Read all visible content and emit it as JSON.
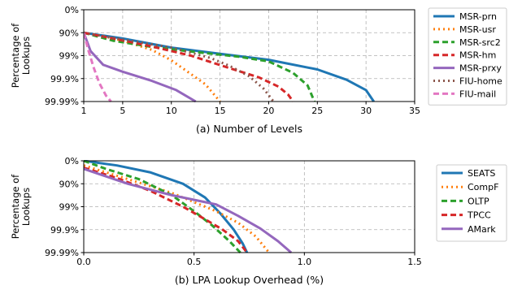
{
  "chart_data": [
    {
      "type": "line",
      "caption": "(a) Number of Levels",
      "ylabel": "Percentage of Lookups",
      "x_ticks": [
        "1",
        "5",
        "10",
        "15",
        "20",
        "25",
        "30",
        "35"
      ],
      "y_ticks": [
        "0%",
        "90%",
        "99%",
        "99.9%",
        "99.99%"
      ],
      "xlim": [
        1,
        35
      ],
      "ylim_nines": [
        0,
        4
      ],
      "y_scale": "tail-nines (0% at top, 99.99% at bottom)",
      "grid": true,
      "legend_position": "right",
      "series": [
        {
          "name": "MSR-prn",
          "color": "#1f77b4",
          "dash": "solid",
          "points": [
            [
              1,
              1.0
            ],
            [
              5,
              1.25
            ],
            [
              10,
              1.65
            ],
            [
              15,
              1.92
            ],
            [
              20,
              2.18
            ],
            [
              25,
              2.6
            ],
            [
              28,
              3.05
            ],
            [
              30,
              3.5
            ],
            [
              30.8,
              4.0
            ]
          ]
        },
        {
          "name": "MSR-usr",
          "color": "#ff7f0e",
          "dash": "dotted",
          "points": [
            [
              1,
              1.0
            ],
            [
              3,
              1.15
            ],
            [
              5,
              1.35
            ],
            [
              8,
              1.75
            ],
            [
              10,
              2.2
            ],
            [
              12,
              2.8
            ],
            [
              13.5,
              3.25
            ],
            [
              15,
              4.0
            ]
          ]
        },
        {
          "name": "MSR-src2",
          "color": "#2ca02c",
          "dash": "dashed",
          "points": [
            [
              1,
              1.0
            ],
            [
              4,
              1.35
            ],
            [
              8,
              1.62
            ],
            [
              12,
              1.82
            ],
            [
              17,
              2.05
            ],
            [
              20,
              2.25
            ],
            [
              22.5,
              2.75
            ],
            [
              24,
              3.3
            ],
            [
              24.7,
              4.0
            ]
          ]
        },
        {
          "name": "MSR-hm",
          "color": "#d62728",
          "dash": "dashed",
          "points": [
            [
              1,
              1.0
            ],
            [
              4,
              1.25
            ],
            [
              8,
              1.6
            ],
            [
              12,
              2.0
            ],
            [
              16,
              2.55
            ],
            [
              19,
              2.95
            ],
            [
              21,
              3.35
            ],
            [
              22,
              3.7
            ],
            [
              22.5,
              4.0
            ]
          ]
        },
        {
          "name": "MSR-prxy",
          "color": "#9467bd",
          "dash": "solid",
          "points": [
            [
              1,
              1.0
            ],
            [
              1.7,
              1.8
            ],
            [
              3,
              2.4
            ],
            [
              5,
              2.7
            ],
            [
              8,
              3.1
            ],
            [
              10.5,
              3.5
            ],
            [
              12.5,
              4.0
            ]
          ]
        },
        {
          "name": "FIU-home",
          "color": "#8c564b",
          "dash": "dotted",
          "points": [
            [
              1,
              1.0
            ],
            [
              5,
              1.3
            ],
            [
              10,
              1.65
            ],
            [
              14,
              2.1
            ],
            [
              16,
              2.45
            ],
            [
              18,
              2.9
            ],
            [
              19.5,
              3.45
            ],
            [
              20.5,
              4.0
            ]
          ]
        },
        {
          "name": "FIU-mail",
          "color": "#e377c2",
          "dash": "dashed",
          "points": [
            [
              1,
              1.0
            ],
            [
              1.5,
              1.8
            ],
            [
              2,
              2.5
            ],
            [
              2.6,
              3.2
            ],
            [
              3.3,
              3.75
            ],
            [
              3.8,
              4.0
            ]
          ]
        }
      ]
    },
    {
      "type": "line",
      "caption": "(b) LPA Lookup Overhead (%)",
      "ylabel": "Percentage of Lookups",
      "x_ticks": [
        "0.0",
        "0.5",
        "1.0",
        "1.5"
      ],
      "y_ticks": [
        "0%",
        "90%",
        "99%",
        "99.9%",
        "99.99%"
      ],
      "xlim": [
        0,
        1.5
      ],
      "ylim_nines": [
        0,
        4
      ],
      "y_scale": "tail-nines (0% at top, 99.99% at bottom)",
      "grid": true,
      "legend_position": "right",
      "series": [
        {
          "name": "SEATS",
          "color": "#1f77b4",
          "dash": "solid",
          "points": [
            [
              0,
              0.0
            ],
            [
              0.15,
              0.2
            ],
            [
              0.3,
              0.5
            ],
            [
              0.45,
              1.0
            ],
            [
              0.55,
              1.6
            ],
            [
              0.62,
              2.3
            ],
            [
              0.68,
              3.0
            ],
            [
              0.72,
              3.6
            ],
            [
              0.74,
              4.0
            ]
          ]
        },
        {
          "name": "CompF",
          "color": "#ff7f0e",
          "dash": "dotted",
          "points": [
            [
              0,
              0.2
            ],
            [
              0.2,
              0.8
            ],
            [
              0.4,
              1.4
            ],
            [
              0.6,
              2.2
            ],
            [
              0.7,
              2.7
            ],
            [
              0.78,
              3.3
            ],
            [
              0.84,
              4.0
            ]
          ]
        },
        {
          "name": "OLTP",
          "color": "#2ca02c",
          "dash": "dashed",
          "points": [
            [
              0,
              0.0
            ],
            [
              0.1,
              0.35
            ],
            [
              0.25,
              0.8
            ],
            [
              0.4,
              1.5
            ],
            [
              0.5,
              2.2
            ],
            [
              0.58,
              2.8
            ],
            [
              0.66,
              3.5
            ],
            [
              0.71,
              4.0
            ]
          ]
        },
        {
          "name": "TPCC",
          "color": "#d62728",
          "dash": "dashed",
          "points": [
            [
              0,
              0.3
            ],
            [
              0.15,
              0.75
            ],
            [
              0.3,
              1.3
            ],
            [
              0.45,
              2.0
            ],
            [
              0.55,
              2.55
            ],
            [
              0.63,
              3.0
            ],
            [
              0.7,
              3.5
            ],
            [
              0.74,
              4.0
            ]
          ]
        },
        {
          "name": "AMark",
          "color": "#9467bd",
          "dash": "solid",
          "points": [
            [
              0,
              0.35
            ],
            [
              0.2,
              1.0
            ],
            [
              0.4,
              1.5
            ],
            [
              0.6,
              1.9
            ],
            [
              0.7,
              2.4
            ],
            [
              0.8,
              2.95
            ],
            [
              0.88,
              3.5
            ],
            [
              0.94,
              4.0
            ]
          ]
        }
      ]
    }
  ]
}
